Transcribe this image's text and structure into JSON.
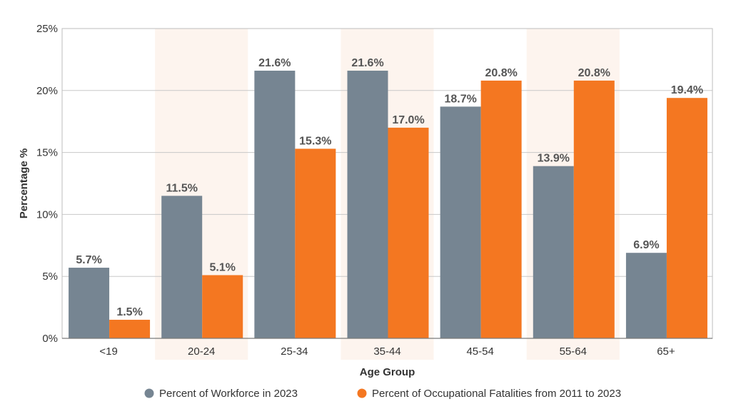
{
  "chart_data": {
    "type": "bar",
    "title": "",
    "xlabel": "Age Group",
    "ylabel": "Percentage %",
    "ylim": [
      0,
      25
    ],
    "yticks": [
      0,
      5,
      10,
      15,
      20,
      25
    ],
    "ytick_labels": [
      "0%",
      "5%",
      "10%",
      "15%",
      "20%",
      "25%"
    ],
    "categories": [
      "<19",
      "20-24",
      "25-34",
      "35-44",
      "45-54",
      "55-64",
      "65+"
    ],
    "highlighted_categories": [
      "20-24",
      "35-44",
      "55-64"
    ],
    "series": [
      {
        "name": "Percent of Workforce in 2023",
        "color": "#768592",
        "values": [
          5.7,
          11.5,
          21.6,
          21.6,
          18.7,
          13.9,
          6.9
        ],
        "labels": [
          "5.7%",
          "11.5%",
          "21.6%",
          "21.6%",
          "18.7%",
          "13.9%",
          "6.9%"
        ]
      },
      {
        "name": "Percent of Occupational Fatalities from 2011 to 2023",
        "color": "#f47721",
        "values": [
          1.5,
          5.1,
          15.3,
          17.0,
          20.8,
          20.8,
          19.4
        ],
        "labels": [
          "1.5%",
          "5.1%",
          "15.3%",
          "17.0%",
          "20.8%",
          "20.8%",
          "19.4%"
        ]
      }
    ],
    "grid": true,
    "band_color": "#fdf4ee",
    "legend_position": "bottom"
  }
}
